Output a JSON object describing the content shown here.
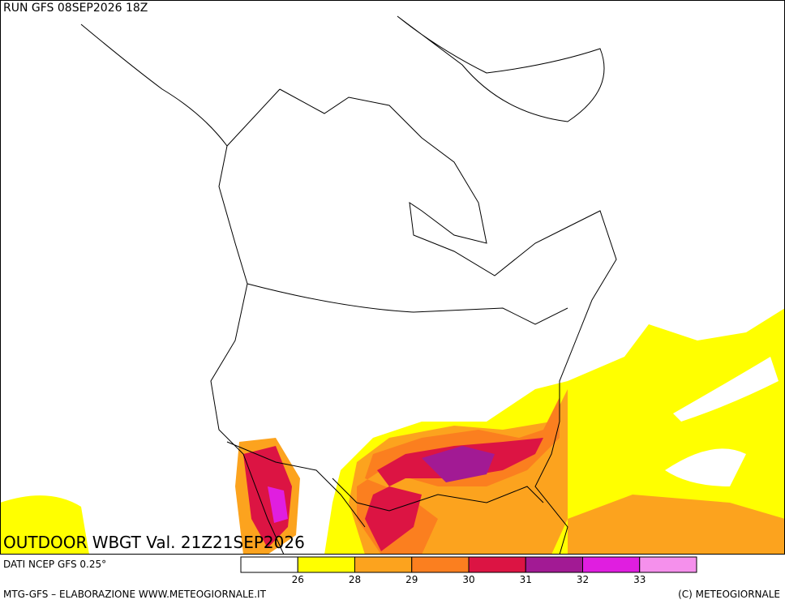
{
  "header": {
    "run": "RUN GFS 08SEP2026 18Z"
  },
  "title": "OUTDOOR WBGT Val. 21Z21SEP2026",
  "source": "DATI NCEP GFS 0.25°",
  "legend": {
    "colors": [
      "#ffffff",
      "#ffff00",
      "#fca31e",
      "#fb7f1f",
      "#dc1443",
      "#a21a94",
      "#e01ee0",
      "#f590ec"
    ],
    "labels": [
      "26",
      "28",
      "29",
      "30",
      "31",
      "32",
      "33"
    ]
  },
  "footer": {
    "left": "MTG-GFS – ELABORAZIONE WWW.METEOGIORNALE.IT",
    "right": "(C) METEOGIORNALE"
  }
}
